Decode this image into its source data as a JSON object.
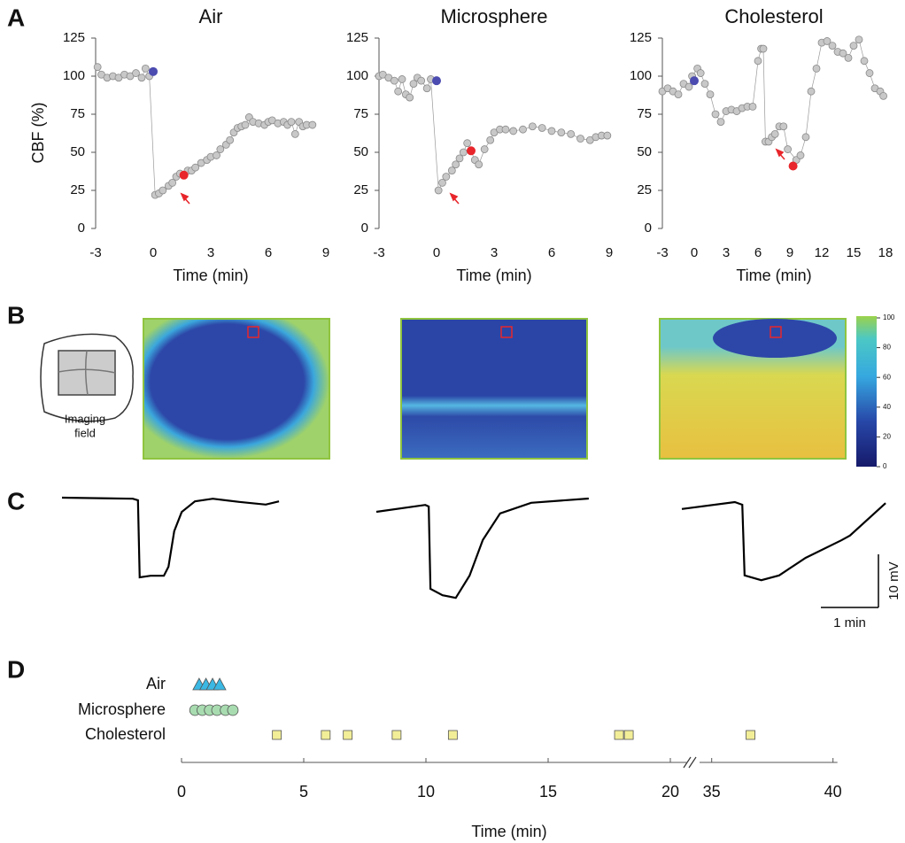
{
  "panel_letters": [
    "A",
    "B",
    "C",
    "D"
  ],
  "chart_data": [
    {
      "type": "scatter",
      "title": "Air",
      "ylabel": "CBF (%)",
      "xlabel": "Time (min)",
      "xlim": [
        -3,
        9
      ],
      "ylim": [
        0,
        125
      ],
      "xticks": [
        -3,
        0,
        3,
        6,
        9
      ],
      "yticks": [
        0,
        25,
        50,
        75,
        100,
        125
      ],
      "color": "#c8c8c8",
      "x": [
        -2.9,
        -2.7,
        -2.4,
        -2.1,
        -1.8,
        -1.5,
        -1.2,
        -0.9,
        -0.6,
        -0.4,
        -0.2,
        0.1,
        0.3,
        0.5,
        0.8,
        1.0,
        1.2,
        1.4,
        1.8,
        2.0,
        2.2,
        2.5,
        2.8,
        3.0,
        3.3,
        3.5,
        3.8,
        4.0,
        4.2,
        4.4,
        4.6,
        4.8,
        5.0,
        5.2,
        5.5,
        5.8,
        6.0,
        6.2,
        6.5,
        6.8,
        7.0,
        7.2,
        7.4,
        7.6,
        7.8,
        8.0,
        8.3
      ],
      "values": [
        106,
        101,
        99,
        100,
        99,
        101,
        100,
        102,
        99,
        105,
        100,
        22,
        23,
        25,
        28,
        30,
        34,
        36,
        38,
        38,
        40,
        43,
        45,
        47,
        48,
        52,
        55,
        58,
        63,
        66,
        67,
        68,
        73,
        70,
        69,
        68,
        70,
        71,
        69,
        70,
        68,
        70,
        62,
        70,
        67,
        68,
        68
      ],
      "highlights": [
        {
          "x": 0,
          "value": 103,
          "color": "#4b4bb0"
        },
        {
          "x": 1.6,
          "value": 35,
          "color": "#e8262b"
        }
      ]
    },
    {
      "type": "scatter",
      "title": "Microsphere",
      "xlabel": "Time (min)",
      "xlim": [
        -3,
        9
      ],
      "ylim": [
        0,
        125
      ],
      "xticks": [
        -3,
        0,
        3,
        6,
        9
      ],
      "yticks": [
        0,
        25,
        50,
        75,
        100,
        125
      ],
      "color": "#c8c8c8",
      "x": [
        -3.0,
        -2.8,
        -2.5,
        -2.2,
        -2.0,
        -1.8,
        -1.6,
        -1.4,
        -1.2,
        -1.0,
        -0.8,
        -0.5,
        -0.3,
        0.1,
        0.3,
        0.5,
        0.8,
        1.0,
        1.2,
        1.4,
        1.6,
        2.0,
        2.2,
        2.5,
        2.8,
        3.0,
        3.3,
        3.6,
        4.0,
        4.5,
        5.0,
        5.5,
        6.0,
        6.5,
        7.0,
        7.5,
        8.0,
        8.3,
        8.6,
        8.9
      ],
      "values": [
        100,
        101,
        99,
        97,
        90,
        98,
        88,
        86,
        95,
        99,
        97,
        92,
        98,
        25,
        30,
        34,
        38,
        42,
        46,
        50,
        56,
        45,
        42,
        52,
        58,
        63,
        65,
        65,
        64,
        65,
        67,
        66,
        64,
        63,
        62,
        59,
        58,
        60,
        61,
        61
      ],
      "highlights": [
        {
          "x": 0,
          "value": 97,
          "color": "#4b4bb0"
        },
        {
          "x": 1.8,
          "value": 51,
          "color": "#e8262b"
        }
      ]
    },
    {
      "type": "scatter",
      "title": "Cholesterol",
      "xlabel": "Time (min)",
      "xlim": [
        -3,
        18
      ],
      "ylim": [
        0,
        125
      ],
      "xticks": [
        -3,
        0,
        3,
        6,
        9,
        12,
        15,
        18
      ],
      "yticks": [
        0,
        25,
        50,
        75,
        100,
        125
      ],
      "color": "#c8c8c8",
      "x": [
        -3.0,
        -2.5,
        -2.0,
        -1.5,
        -1.0,
        -0.5,
        -0.2,
        0.3,
        0.6,
        1.0,
        1.5,
        2.0,
        2.5,
        3.0,
        3.5,
        4.0,
        4.5,
        5.0,
        5.5,
        6.0,
        6.3,
        6.5,
        6.7,
        7.0,
        7.3,
        7.6,
        8.0,
        8.4,
        8.8,
        9.6,
        10.0,
        10.5,
        11.0,
        11.5,
        12.0,
        12.5,
        13.0,
        13.5,
        14.0,
        14.5,
        15.0,
        15.5,
        16.0,
        16.5,
        17.0,
        17.5,
        17.8
      ],
      "values": [
        90,
        92,
        90,
        88,
        95,
        93,
        100,
        105,
        102,
        95,
        88,
        75,
        70,
        77,
        78,
        77,
        79,
        80,
        80,
        110,
        118,
        118,
        57,
        57,
        60,
        62,
        67,
        67,
        52,
        45,
        48,
        60,
        90,
        105,
        122,
        123,
        120,
        116,
        115,
        112,
        120,
        124,
        110,
        102,
        92,
        90,
        87
      ],
      "highlights": [
        {
          "x": 0,
          "value": 97,
          "color": "#4b4bb0"
        },
        {
          "x": 9.3,
          "value": 41,
          "color": "#e8262b"
        }
      ]
    },
    {
      "type": "line",
      "color": "#000000",
      "x": [
        0,
        1.23,
        1.32,
        1.35,
        1.54,
        1.77,
        1.85,
        1.95,
        2.08,
        2.31,
        2.62,
        3.08,
        3.54,
        3.77
      ],
      "values": [
        0,
        -0.2,
        -0.5,
        -15,
        -14.7,
        -14.7,
        -13,
        -6.3,
        -2.7,
        -0.7,
        -0.2,
        -0.8,
        -1.3,
        -0.7
      ]
    },
    {
      "type": "line",
      "color": "#000000",
      "x": [
        0,
        0.85,
        0.91,
        0.94,
        1.15,
        1.38,
        1.62,
        1.85,
        2.15,
        2.69,
        3.69
      ],
      "values": [
        -0.5,
        0.8,
        0.5,
        -15,
        -16.2,
        -16.7,
        -12.5,
        -5.8,
        -0.8,
        1.2,
        2
      ]
    },
    {
      "type": "line",
      "color": "#000000",
      "x": [
        0,
        0.92,
        1.05,
        1.09,
        1.38,
        1.69,
        2.15,
        2.77,
        2.92,
        3.54
      ],
      "values": [
        -0.8,
        0.5,
        0,
        -13.3,
        -14.2,
        -13.3,
        -10,
        -6.7,
        -5.8,
        0.3
      ]
    },
    {
      "type": "strip",
      "xlabel": "Time (min)",
      "xlim": [
        0,
        40
      ],
      "xbreak": [
        20.7,
        34.5
      ],
      "xticks": [
        0,
        5,
        10,
        15,
        20,
        35,
        40
      ],
      "series": [
        {
          "name": "Air",
          "marker": "triangle",
          "color": "#3bb8e4",
          "values": [
            0.72,
            1.0,
            1.27,
            1.56
          ]
        },
        {
          "name": "Microsphere",
          "marker": "circle",
          "color": "#a8dcb0",
          "values": [
            0.55,
            0.85,
            1.15,
            1.45,
            1.8,
            2.1
          ]
        },
        {
          "name": "Cholesterol",
          "marker": "square",
          "color": "#f2ee98",
          "values": [
            3.9,
            5.9,
            6.8,
            8.8,
            11.1,
            17.9,
            18.3,
            36.6
          ]
        }
      ]
    }
  ],
  "scale_bars": {
    "x": {
      "value": 1,
      "label": "1 min"
    },
    "y": {
      "value": 10,
      "label": "10 mV"
    }
  },
  "heatmap": {
    "imaging_label": [
      "Imaging",
      "field"
    ],
    "colorbar_lim": [
      0,
      100
    ],
    "colorbar_ticks": [
      0,
      20,
      40,
      60,
      80,
      100
    ]
  }
}
